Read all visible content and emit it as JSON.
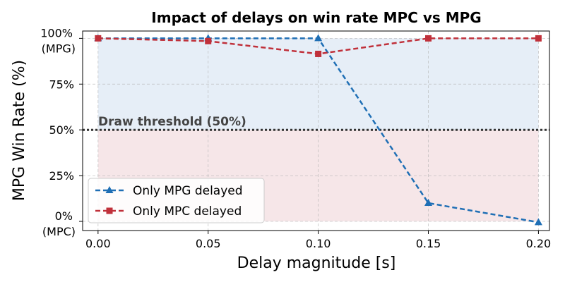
{
  "chart_data": {
    "type": "line",
    "title": "Impact of delays on win rate MPC vs MPG",
    "xlabel": "Delay magnitude [s]",
    "ylabel": "MPG Win Rate (%)",
    "x": [
      0.0,
      0.05,
      0.1,
      0.15,
      0.2
    ],
    "x_tick_labels": [
      "0.00",
      "0.05",
      "0.10",
      "0.15",
      "0.20"
    ],
    "xlim": [
      -0.007,
      0.205
    ],
    "ylim": [
      -5,
      104
    ],
    "y_ticks": [
      {
        "value": 0,
        "line1": "0%",
        "line2": "(MPC)"
      },
      {
        "value": 25,
        "line1": "25%",
        "line2": ""
      },
      {
        "value": 50,
        "line1": "50%",
        "line2": ""
      },
      {
        "value": 75,
        "line1": "75%",
        "line2": ""
      },
      {
        "value": 100,
        "line1": "100%",
        "line2": "(MPG)"
      }
    ],
    "series": [
      {
        "name": "Only MPG delayed",
        "values": [
          100,
          100,
          100,
          10,
          -0.5
        ],
        "color": "#1f6fb5",
        "marker": "triangle"
      },
      {
        "name": "Only MPC delayed",
        "values": [
          100,
          98.5,
          91.5,
          100,
          100
        ],
        "color": "#c0303a",
        "marker": "square"
      }
    ],
    "threshold": {
      "value": 50,
      "label": "Draw threshold (50%)"
    },
    "regions": {
      "upper_color": "#e6eef7",
      "lower_color": "#f6e6e8"
    },
    "legend_position": "lower-left",
    "grid": true
  }
}
